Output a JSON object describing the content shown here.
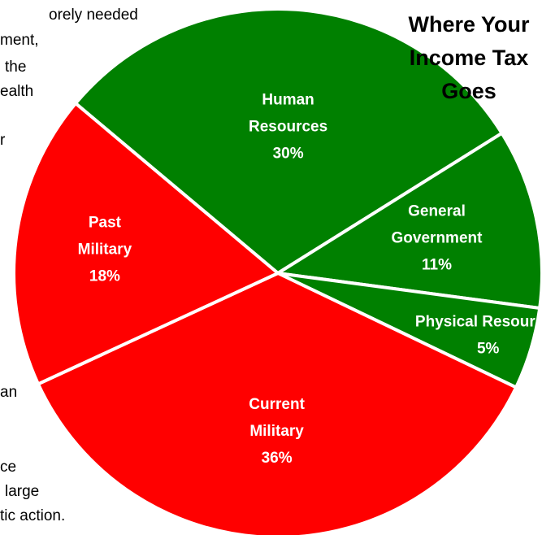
{
  "background_text": {
    "lines": [
      "orely needed",
      "ment,",
      "the",
      "ealth",
      "r",
      "an",
      "ce",
      "large",
      "tic action."
    ]
  },
  "colors": {
    "military": "#ff0000",
    "non_military": "#008000",
    "slice_border": "#ffffff",
    "label_text": "#ffffff"
  },
  "chart_data": {
    "type": "pie",
    "title_lines": [
      "Where Your",
      "Income Tax",
      "Goes"
    ],
    "slices": [
      {
        "label_lines": [
          "Human",
          "Resources"
        ],
        "value": 30,
        "value_label": "30%",
        "color_group": "non_military"
      },
      {
        "label_lines": [
          "General",
          "Government"
        ],
        "value": 11,
        "value_label": "11%",
        "color_group": "non_military"
      },
      {
        "label_lines": [
          "Physical Resources"
        ],
        "value": 5,
        "value_label": "5%",
        "color_group": "non_military"
      },
      {
        "label_lines": [
          "Current",
          "Military"
        ],
        "value": 36,
        "value_label": "36%",
        "color_group": "military"
      },
      {
        "label_lines": [
          "Past",
          "Military"
        ],
        "value": 18,
        "value_label": "18%",
        "color_group": "military"
      }
    ]
  }
}
